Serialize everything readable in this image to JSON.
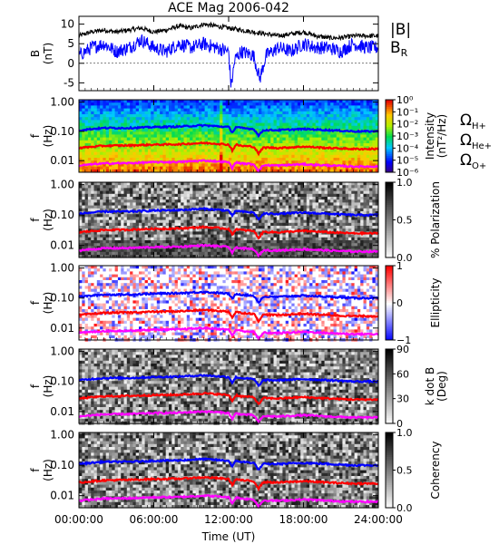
{
  "chart_data": {
    "type": "multi-panel spectrogram",
    "title": "ACE Mag 2006-042",
    "xlabel": "Time (UT)",
    "xticks": [
      "00:00:00",
      "06:00:00",
      "12:00:00",
      "18:00:00",
      "24:00:00"
    ],
    "xlim_hours": [
      0,
      24
    ],
    "panels": [
      {
        "kind": "line",
        "ylabel": "B",
        "yunit": "(nT)",
        "ylim": [
          -7,
          12
        ],
        "yticks": [
          10,
          5,
          0,
          -5
        ],
        "legend": [
          {
            "label": "|B|",
            "sub": "",
            "color": "#000000"
          },
          {
            "label": "B",
            "sub": "R",
            "color": "#0000ff"
          }
        ],
        "series": [
          {
            "name": "|B|",
            "color": "#000000",
            "x": [
              0,
              1,
              2,
              3,
              4,
              5,
              6,
              7,
              8,
              9,
              10,
              11,
              12,
              13,
              14,
              15,
              16,
              17,
              18,
              19,
              20,
              21,
              22,
              23,
              24
            ],
            "y": [
              7,
              8,
              8.5,
              8,
              8.5,
              9,
              8,
              8.5,
              9.5,
              9,
              10,
              9.5,
              9,
              8.5,
              8,
              7.5,
              7,
              7.5,
              8,
              7,
              6.5,
              6.5,
              7,
              7,
              7
            ]
          },
          {
            "name": "B_R",
            "color": "#0000ff",
            "x": [
              0,
              1,
              2,
              3,
              4,
              5,
              6,
              7,
              8,
              9,
              10,
              11,
              12,
              12.2,
              12.5,
              13,
              14,
              14.5,
              15,
              16,
              17,
              18,
              19,
              20,
              21,
              22,
              23,
              24
            ],
            "y": [
              2,
              4,
              5,
              3,
              4,
              6,
              4,
              3,
              5,
              4,
              5,
              4,
              3,
              -6,
              1,
              3,
              2,
              -4,
              2,
              4,
              3,
              5,
              4,
              4,
              3,
              5,
              4,
              4
            ]
          }
        ]
      },
      {
        "kind": "spectrogram",
        "ylabel": "f",
        "yunit": "(Hz)",
        "ylim_log": [
          0.004,
          1.2
        ],
        "yticks": [
          "1.00",
          "0.10",
          "0.01"
        ],
        "palette": "rainbow",
        "colorbar": {
          "label": "Intensity",
          "unit": "(nT²/Hz)",
          "ticks": [
            "10⁰",
            "10⁻¹",
            "10⁻²",
            "10⁻³",
            "10⁻⁴",
            "10⁻⁵",
            "10⁻⁶"
          ]
        },
        "annotations": [
          {
            "text": "Ω",
            "sub": "H+",
            "color": "#0000ff"
          },
          {
            "text": "Ω",
            "sub": "He+",
            "color": "#ff0000"
          },
          {
            "text": "Ω",
            "sub": "O+",
            "color": "#ff00ff"
          }
        ]
      },
      {
        "kind": "spectrogram",
        "ylabel": "f",
        "yunit": "(Hz)",
        "ylim_log": [
          0.004,
          1.2
        ],
        "yticks": [
          "1.00",
          "0.10",
          "0.01"
        ],
        "palette": "gray",
        "colorbar": {
          "label": "% Polarization",
          "unit": "",
          "ticks": [
            "1.0",
            "0.5",
            "0.0"
          ],
          "range": [
            0,
            1
          ]
        }
      },
      {
        "kind": "spectrogram",
        "ylabel": "f",
        "yunit": "(Hz)",
        "ylim_log": [
          0.004,
          1.2
        ],
        "yticks": [
          "1.00",
          "0.10",
          "0.01"
        ],
        "palette": "bluewhitered",
        "colorbar": {
          "label": "Ellipticity",
          "unit": "",
          "ticks": [
            "1",
            "0",
            "−1"
          ],
          "range": [
            -1,
            1
          ]
        }
      },
      {
        "kind": "spectrogram",
        "ylabel": "f",
        "yunit": "(Hz)",
        "ylim_log": [
          0.004,
          1.2
        ],
        "yticks": [
          "1.00",
          "0.10",
          "0.01"
        ],
        "palette": "gray",
        "colorbar": {
          "label": "k dot B",
          "unit": "(Deg)",
          "ticks": [
            "90",
            "60",
            "30",
            "0"
          ],
          "range": [
            0,
            90
          ]
        }
      },
      {
        "kind": "spectrogram",
        "ylabel": "f",
        "yunit": "(Hz)",
        "ylim_log": [
          0.004,
          1.2
        ],
        "yticks": [
          "1.00",
          "0.10",
          "0.01"
        ],
        "palette": "gray",
        "colorbar": {
          "label": "Coherency",
          "unit": "",
          "ticks": [
            "1.0",
            "0.5",
            "0.0"
          ],
          "range": [
            0,
            1
          ]
        }
      }
    ],
    "gyrofrequency_lines": [
      {
        "name": "H+",
        "color": "#0000ff",
        "x": [
          0,
          2,
          4,
          6,
          8,
          10,
          11,
          12,
          12.3,
          12.6,
          13,
          14,
          14.4,
          14.8,
          16,
          18,
          20,
          22,
          24
        ],
        "y": [
          0.11,
          0.13,
          0.13,
          0.14,
          0.145,
          0.16,
          0.15,
          0.14,
          0.09,
          0.14,
          0.13,
          0.12,
          0.07,
          0.11,
          0.11,
          0.12,
          0.11,
          0.1,
          0.1
        ]
      },
      {
        "name": "He+",
        "color": "#ff0000",
        "x": [
          0,
          2,
          4,
          6,
          8,
          10,
          11,
          12,
          12.3,
          12.6,
          13,
          14,
          14.4,
          14.8,
          16,
          18,
          20,
          22,
          24
        ],
        "y": [
          0.027,
          0.032,
          0.033,
          0.035,
          0.036,
          0.04,
          0.038,
          0.035,
          0.022,
          0.035,
          0.032,
          0.03,
          0.017,
          0.028,
          0.027,
          0.03,
          0.027,
          0.025,
          0.025
        ]
      },
      {
        "name": "O+",
        "color": "#ff00ff",
        "x": [
          0,
          2,
          4,
          6,
          8,
          10,
          11,
          12,
          12.3,
          12.6,
          13,
          14,
          14.4,
          14.8,
          16,
          18,
          20,
          22,
          24
        ],
        "y": [
          0.0068,
          0.008,
          0.0082,
          0.0088,
          0.009,
          0.01,
          0.0095,
          0.0088,
          0.0055,
          0.0088,
          0.008,
          0.0075,
          0.0043,
          0.007,
          0.0068,
          0.0075,
          0.0068,
          0.0063,
          0.0063
        ]
      }
    ]
  }
}
